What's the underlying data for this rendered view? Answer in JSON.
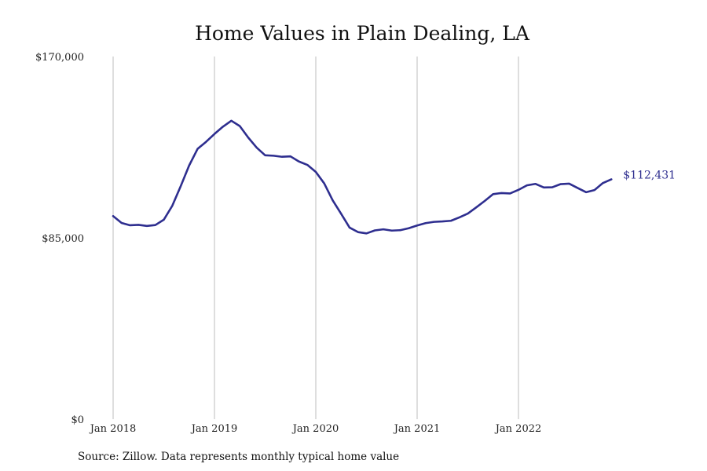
{
  "chart_data": {
    "type": "line",
    "title": "Home Values in Plain Dealing, LA",
    "source": "Source: Zillow. Data represents monthly typical home value",
    "ylim": [
      0,
      170000
    ],
    "y_ticks": [
      {
        "value": 0,
        "label": "$0"
      },
      {
        "value": 85000,
        "label": "$85,000"
      },
      {
        "value": 170000,
        "label": "$170,000"
      }
    ],
    "x_ticks": [
      {
        "date": "2018-01",
        "label": "Jan 2018"
      },
      {
        "date": "2019-01",
        "label": "Jan 2019"
      },
      {
        "date": "2020-01",
        "label": "Jan 2020"
      },
      {
        "date": "2021-01",
        "label": "Jan 2021"
      },
      {
        "date": "2022-01",
        "label": "Jan 2022"
      }
    ],
    "x_range": [
      "2018-01",
      "2022-12"
    ],
    "grid": {
      "vertical": true,
      "horizontal": false
    },
    "line_color": "#2e2e8f",
    "grid_color": "#bdbdbd",
    "end_label": "$112,431",
    "series": [
      {
        "x": [
          "2018-01",
          "2018-02",
          "2018-03",
          "2018-04",
          "2018-05",
          "2018-06",
          "2018-07",
          "2018-08",
          "2018-09",
          "2018-10",
          "2018-11",
          "2018-12",
          "2019-01",
          "2019-02",
          "2019-03",
          "2019-04",
          "2019-05",
          "2019-06",
          "2019-07",
          "2019-08",
          "2019-09",
          "2019-10",
          "2019-11",
          "2019-12",
          "2020-01",
          "2020-02",
          "2020-03",
          "2020-04",
          "2020-05",
          "2020-06",
          "2020-07",
          "2020-08",
          "2020-09",
          "2020-10",
          "2020-11",
          "2020-12",
          "2021-01",
          "2021-02",
          "2021-03",
          "2021-04",
          "2021-05",
          "2021-06",
          "2021-07",
          "2021-08",
          "2021-09",
          "2021-10",
          "2021-11",
          "2021-12",
          "2022-01",
          "2022-02",
          "2022-03",
          "2022-04",
          "2022-05",
          "2022-06",
          "2022-07",
          "2022-08",
          "2022-09",
          "2022-10",
          "2022-11",
          "2022-12"
        ],
        "values": [
          95200,
          92000,
          90900,
          91100,
          90600,
          91000,
          93500,
          100000,
          109200,
          118900,
          126700,
          130000,
          133700,
          137100,
          139900,
          137400,
          132000,
          127300,
          123700,
          123500,
          123000,
          123200,
          120800,
          119200,
          115900,
          110500,
          102600,
          96300,
          89800,
          87700,
          87100,
          88500,
          89000,
          88400,
          88600,
          89500,
          90800,
          91900,
          92500,
          92700,
          93000,
          94600,
          96400,
          99300,
          102300,
          105500,
          106000,
          105800,
          107500,
          109600,
          110300,
          108600,
          108700,
          110200,
          110400,
          108400,
          106400,
          107400,
          110700,
          112431
        ]
      }
    ]
  }
}
